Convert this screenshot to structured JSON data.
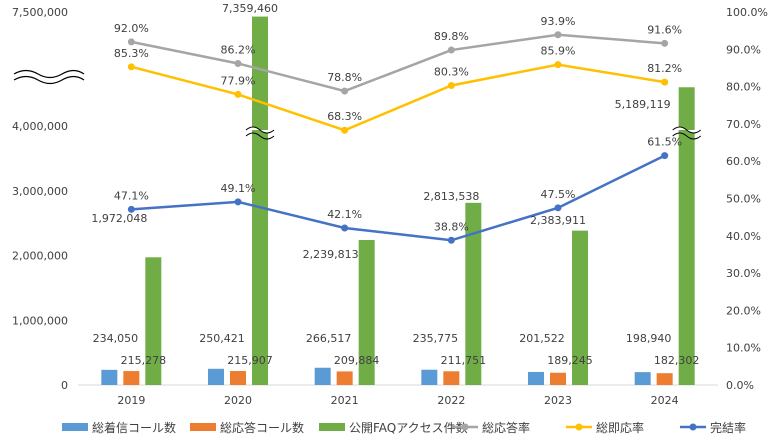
{
  "chart_data": {
    "type": "bar",
    "categories": [
      "2019",
      "2020",
      "2021",
      "2022",
      "2023",
      "2024"
    ],
    "series": [
      {
        "name": "総着信コール数",
        "kind": "bar",
        "axis": "left",
        "color": "#5b9bd5",
        "values": [
          234050,
          250421,
          266517,
          235775,
          201522,
          198940
        ],
        "labels": [
          "234,050",
          "250,421",
          "266,517",
          "235,775",
          "201,522",
          "198,940"
        ]
      },
      {
        "name": "総応答コール数",
        "kind": "bar",
        "axis": "left",
        "color": "#ed7d31",
        "values": [
          215278,
          215907,
          209884,
          211751,
          189245,
          182302
        ],
        "labels": [
          "215,278",
          "215,907",
          "209,884",
          "211,751",
          "189,245",
          "182,302"
        ]
      },
      {
        "name": "公開FAQアクセス件数",
        "kind": "bar",
        "axis": "left",
        "color": "#70ad47",
        "values": [
          1972048,
          7359460,
          2239813,
          2813538,
          2383911,
          5189119
        ],
        "labels": [
          "1,972,048",
          "7,359,460",
          "2,239,813",
          "2,813,538",
          "2,383,911",
          "5,189,119"
        ]
      },
      {
        "name": "総応答率",
        "kind": "line",
        "axis": "right",
        "color": "#a5a5a5",
        "values": [
          92.0,
          86.2,
          78.8,
          89.8,
          93.9,
          91.6
        ],
        "labels": [
          "92.0%",
          "86.2%",
          "78.8%",
          "89.8%",
          "93.9%",
          "91.6%"
        ]
      },
      {
        "name": "総即応率",
        "kind": "line",
        "axis": "right",
        "color": "#ffc000",
        "values": [
          85.3,
          77.9,
          68.3,
          80.3,
          85.9,
          81.2
        ],
        "labels": [
          "85.3%",
          "77.9%",
          "68.3%",
          "80.3%",
          "85.9%",
          "81.2%"
        ]
      },
      {
        "name": "完結率",
        "kind": "line",
        "axis": "right",
        "color": "#4472c4",
        "values": [
          47.1,
          49.1,
          42.1,
          38.8,
          47.5,
          61.5
        ],
        "labels": [
          "47.1%",
          "49.1%",
          "42.1%",
          "38.8%",
          "47.5%",
          "61.5%"
        ]
      }
    ],
    "y_left": {
      "ticks": [
        0,
        1000000,
        2000000,
        3000000,
        4000000,
        7500000
      ],
      "tick_labels": [
        "0",
        "1,000,000",
        "2,000,000",
        "3,000,000",
        "4,000,000",
        "7,500,000"
      ],
      "axis_break": [
        4000000,
        7500000
      ]
    },
    "y_right": {
      "ylim": [
        0,
        100
      ],
      "ticks": [
        0,
        10,
        20,
        30,
        40,
        50,
        60,
        70,
        80,
        90,
        100
      ],
      "tick_labels": [
        "0.0%",
        "10.0%",
        "20.0%",
        "30.0%",
        "40.0%",
        "50.0%",
        "60.0%",
        "70.0%",
        "80.0%",
        "90.0%",
        "100.0%"
      ]
    },
    "legend_position": "bottom",
    "grid": false
  }
}
